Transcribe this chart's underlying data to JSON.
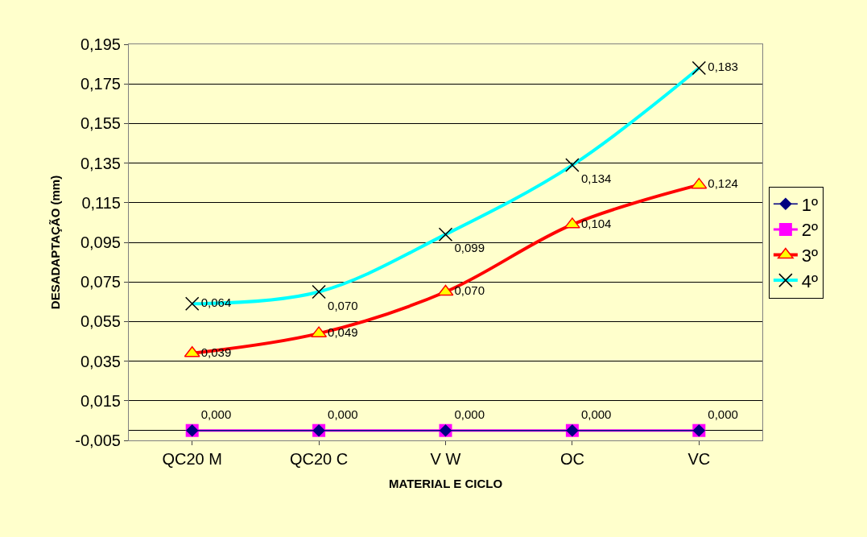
{
  "chart_data": {
    "type": "line",
    "xlabel": "MATERIAL E CICLO",
    "ylabel": "DESADAPTAÇÃO (mm)",
    "categories": [
      "QC20 M",
      "QC20 C",
      "V W",
      "OC",
      "VC"
    ],
    "series": [
      {
        "name": "1º",
        "color": "#000080",
        "marker": "diamond",
        "values": [
          0,
          0,
          0,
          0,
          0
        ]
      },
      {
        "name": "2º",
        "color": "#ff00ff",
        "marker": "square",
        "values": [
          0,
          0,
          0,
          0,
          0
        ],
        "value_labels": [
          "0,000",
          "0,000",
          "0,000",
          "0,000",
          "0,000"
        ]
      },
      {
        "name": "3º",
        "color": "#ff0000",
        "marker": "triangle",
        "values": [
          0.039,
          0.049,
          0.07,
          0.104,
          0.124
        ],
        "value_labels": [
          "0,039",
          "0,049",
          "0,070",
          "0,104",
          "0,124"
        ]
      },
      {
        "name": "4º",
        "color": "#00ffff",
        "marker": "cross",
        "values": [
          0.064,
          0.07,
          0.099,
          0.134,
          0.183
        ],
        "value_labels": [
          "0,064",
          "0,070",
          "0,099",
          "0,134",
          "0,183"
        ]
      }
    ],
    "ylim": [
      -0.005,
      0.195
    ],
    "yticks": [
      {
        "value": -0.005,
        "label": "-0,005"
      },
      {
        "value": 0.015,
        "label": "0,015"
      },
      {
        "value": 0.035,
        "label": "0,035"
      },
      {
        "value": 0.055,
        "label": "0,055"
      },
      {
        "value": 0.075,
        "label": "0,075"
      },
      {
        "value": 0.095,
        "label": "0,095"
      },
      {
        "value": 0.115,
        "label": "0,115"
      },
      {
        "value": 0.135,
        "label": "0,135"
      },
      {
        "value": 0.155,
        "label": "0,155"
      },
      {
        "value": 0.175,
        "label": "0,175"
      },
      {
        "value": 0.195,
        "label": "0,195"
      }
    ],
    "grid": "y",
    "legend": "right",
    "line_style": "solid"
  }
}
